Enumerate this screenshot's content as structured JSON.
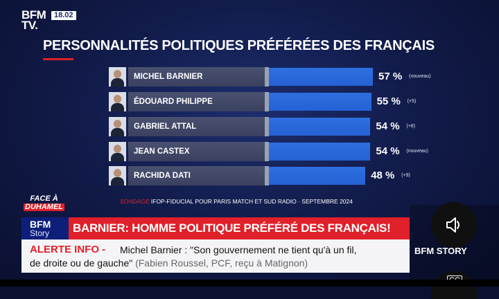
{
  "channel": {
    "logo_line1": "BFM",
    "logo_line2": "TV.",
    "time": "18.02"
  },
  "chart_data": {
    "type": "bar",
    "title": "PERSONNALITÉS POLITIQUES PRÉFÉRÉES DES FRANÇAIS",
    "categories": [
      "MICHEL BARNIER",
      "ÉDOUARD PHILIPPE",
      "GABRIEL ATTAL",
      "JEAN CASTEX",
      "RACHIDA DATI"
    ],
    "values": [
      57,
      55,
      54,
      54,
      48
    ],
    "value_labels": [
      "57 %",
      "55 %",
      "54 %",
      "54 %",
      "48 %"
    ],
    "changes": [
      "(nouveau)",
      "(+5)",
      "(+8)",
      "(nouveau)",
      "(+9)"
    ],
    "xlim": [
      0,
      60
    ],
    "bar_color": "#2561d4"
  },
  "source": {
    "label": "SONDAGE",
    "text": "IFOP-FIDUCIAL POUR PARIS MATCH ET SUD RADIO · SEPTEMBRE 2024"
  },
  "show": {
    "line1": "FACE À",
    "line2": "DUHAMEL"
  },
  "bandeau": {
    "brand1": "BFM",
    "brand2": "Story",
    "headline": "BARNIER: HOMME POLITIQUE PRÉFÉRÉ DES FRANÇAIS!"
  },
  "ticker": {
    "alert_label": "ALERTE INFO -",
    "line1": "Michel Barnier : \"Son gouvernement ne tient qu'à un fil,",
    "line2": "de droite ou de gauche\"",
    "line2_attribution": " (Fabien Roussel, PCF, reçu à Matignon)"
  },
  "player": {
    "channel_label": "BFM STORY",
    "sound_icon": "speaker-icon",
    "cc_label": "CC"
  },
  "colors": {
    "accent": "#e0202a",
    "brand": "#0e1f7a"
  }
}
